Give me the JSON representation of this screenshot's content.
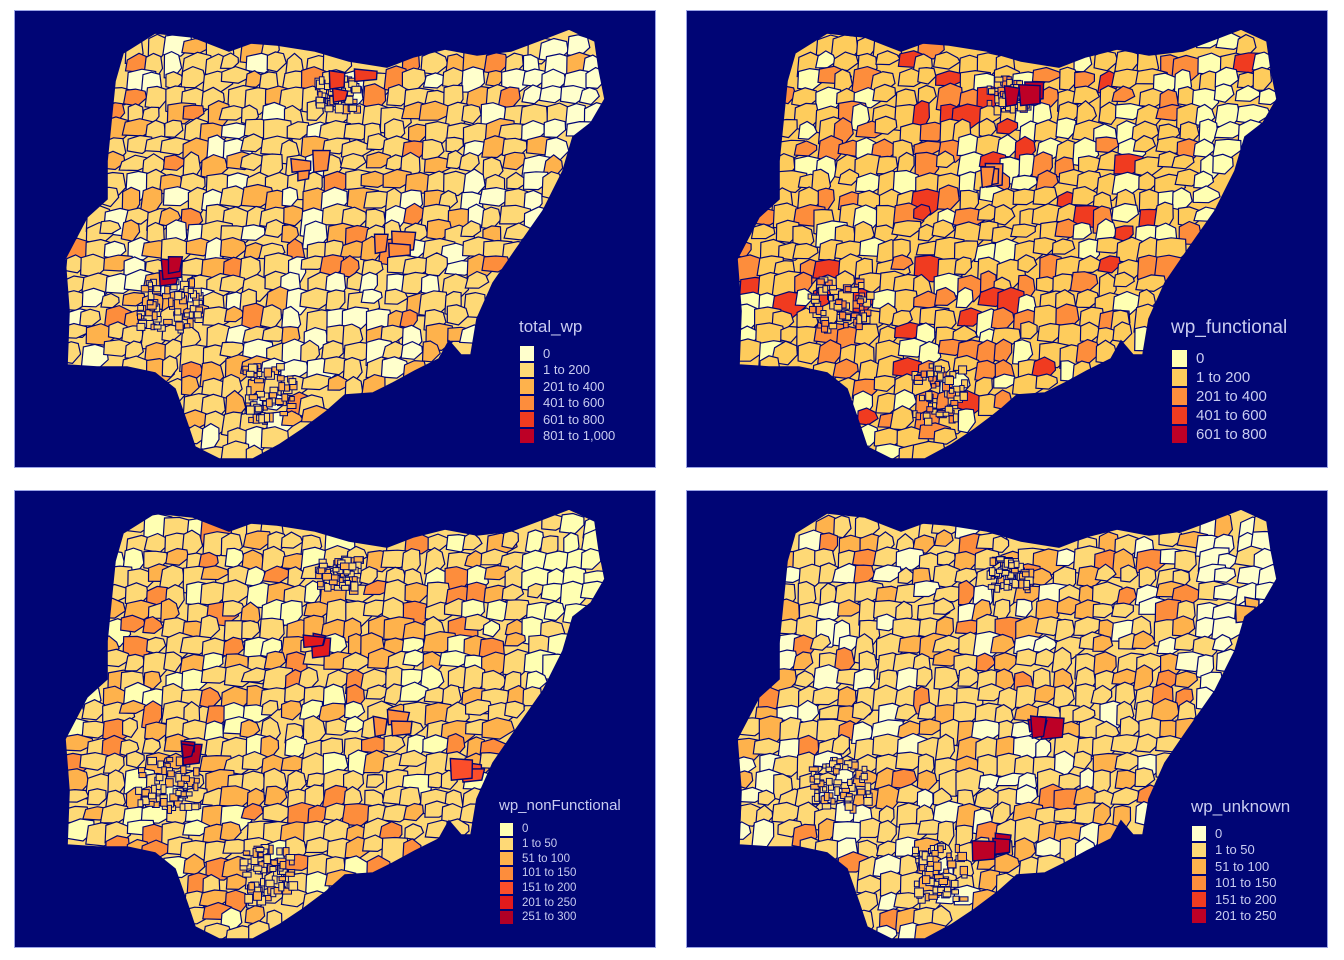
{
  "colors": {
    "panel_background": "#000575",
    "border": "#000575",
    "legend_text": "#c9ccf0"
  },
  "panels": [
    {
      "title": "total_wp",
      "legend": [
        {
          "label": "0",
          "color": "#ffffcc"
        },
        {
          "label": "1 to 200",
          "color": "#fed976"
        },
        {
          "label": "201 to 400",
          "color": "#feb24c"
        },
        {
          "label": "401 to 600",
          "color": "#fd8d3c"
        },
        {
          "label": "601 to 800",
          "color": "#f03b20"
        },
        {
          "label": "801 to 1,000",
          "color": "#bd0026"
        }
      ],
      "hotspots": [
        {
          "area": "north-central",
          "color": "#f03b20"
        },
        {
          "area": "southwest",
          "color": "#bd0026"
        },
        {
          "area": "north",
          "color": "#fd8d3c"
        },
        {
          "area": "middle-belt",
          "color": "#fd8d3c"
        }
      ]
    },
    {
      "title": "wp_functional",
      "legend": [
        {
          "label": "0",
          "color": "#ffffb2"
        },
        {
          "label": "1 to 200",
          "color": "#fecc5c"
        },
        {
          "label": "201 to 400",
          "color": "#fd8d3c"
        },
        {
          "label": "401 to 600",
          "color": "#f03b20"
        },
        {
          "label": "601 to 800",
          "color": "#bd0026"
        }
      ],
      "hotspots": [
        {
          "area": "north-central",
          "color": "#bd0026"
        },
        {
          "area": "north",
          "color": "#fd8d3c"
        }
      ]
    },
    {
      "title": "wp_nonFunctional",
      "legend": [
        {
          "label": "0",
          "color": "#ffffb2"
        },
        {
          "label": "1 to 50",
          "color": "#fed976"
        },
        {
          "label": "51 to 100",
          "color": "#feb24c"
        },
        {
          "label": "101 to 150",
          "color": "#fd8d3c"
        },
        {
          "label": "151 to 200",
          "color": "#fc4e2a"
        },
        {
          "label": "201 to 250",
          "color": "#e31a1c"
        },
        {
          "label": "251 to 300",
          "color": "#b10026"
        }
      ],
      "hotspots": [
        {
          "area": "southwest",
          "color": "#b10026"
        },
        {
          "area": "north",
          "color": "#e31a1c"
        },
        {
          "area": "northeast-central",
          "color": "#fc4e2a"
        },
        {
          "area": "middle-belt",
          "color": "#fd8d3c"
        }
      ]
    },
    {
      "title": "wp_unknown",
      "legend": [
        {
          "label": "0",
          "color": "#ffffcc"
        },
        {
          "label": "1 to 50",
          "color": "#fed976"
        },
        {
          "label": "51 to 100",
          "color": "#feb24c"
        },
        {
          "label": "101 to 150",
          "color": "#fd8d3c"
        },
        {
          "label": "151 to 200",
          "color": "#f03b20"
        },
        {
          "label": "201 to 250",
          "color": "#bd0026"
        }
      ],
      "hotspots": [
        {
          "area": "east-central",
          "color": "#bd0026"
        },
        {
          "area": "southeast",
          "color": "#bd0026"
        },
        {
          "area": "northeast",
          "color": "#feb24c"
        }
      ]
    }
  ]
}
